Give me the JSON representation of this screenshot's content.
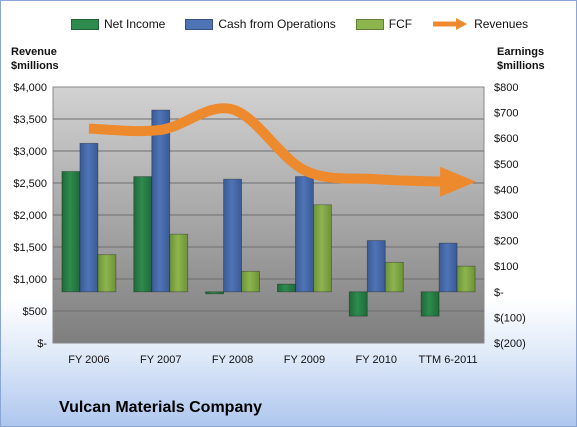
{
  "legend": {
    "net_income": "Net Income",
    "cfo": "Cash from Operations",
    "fcf": "FCF",
    "revenues": "Revenues"
  },
  "axis": {
    "left_title_1": "Revenue",
    "left_title_2": "$millions",
    "right_title_1": "Earnings",
    "right_title_2": "$millions"
  },
  "company": "Vulcan Materials Company",
  "colors": {
    "net_income": "#2e8b4e",
    "cfo": "#4f74b6",
    "fcf": "#8db54e",
    "revenues": "#ee8a2e",
    "plot_top": "#d2d2d2",
    "plot_bottom": "#7e7e7e"
  },
  "chart_data": {
    "type": "bar",
    "categories": [
      "FY 2006",
      "FY 2007",
      "FY 2008",
      "FY 2009",
      "FY 2010",
      "TTM 6-2011"
    ],
    "left_axis": {
      "ylim": [
        0,
        4000
      ],
      "ticks": [
        0,
        500,
        1000,
        1500,
        2000,
        2500,
        3000,
        3500,
        4000
      ],
      "tick_labels": [
        "$-",
        "$500",
        "$1,000",
        "$1,500",
        "$2,000",
        "$2,500",
        "$3,000",
        "$3,500",
        "$4,000"
      ]
    },
    "right_axis": {
      "ylim": [
        -200,
        800
      ],
      "ticks": [
        -200,
        -100,
        0,
        100,
        200,
        300,
        400,
        500,
        600,
        700,
        800
      ],
      "tick_labels": [
        "$(200)",
        "$(100)",
        "$-",
        "$100",
        "$200",
        "$300",
        "$400",
        "$500",
        "$600",
        "$700",
        "$800"
      ]
    },
    "series": [
      {
        "name": "Net Income",
        "axis": "right",
        "values": [
          470,
          450,
          0,
          30,
          -95,
          -95
        ]
      },
      {
        "name": "Cash from Operations",
        "axis": "right",
        "values": [
          580,
          710,
          440,
          450,
          200,
          190
        ]
      },
      {
        "name": "FCF",
        "axis": "right",
        "values": [
          145,
          225,
          80,
          340,
          115,
          100
        ]
      },
      {
        "name": "Revenues",
        "axis": "left",
        "type": "line",
        "values": [
          3350,
          3330,
          3650,
          2700,
          2560,
          2520
        ]
      }
    ]
  }
}
